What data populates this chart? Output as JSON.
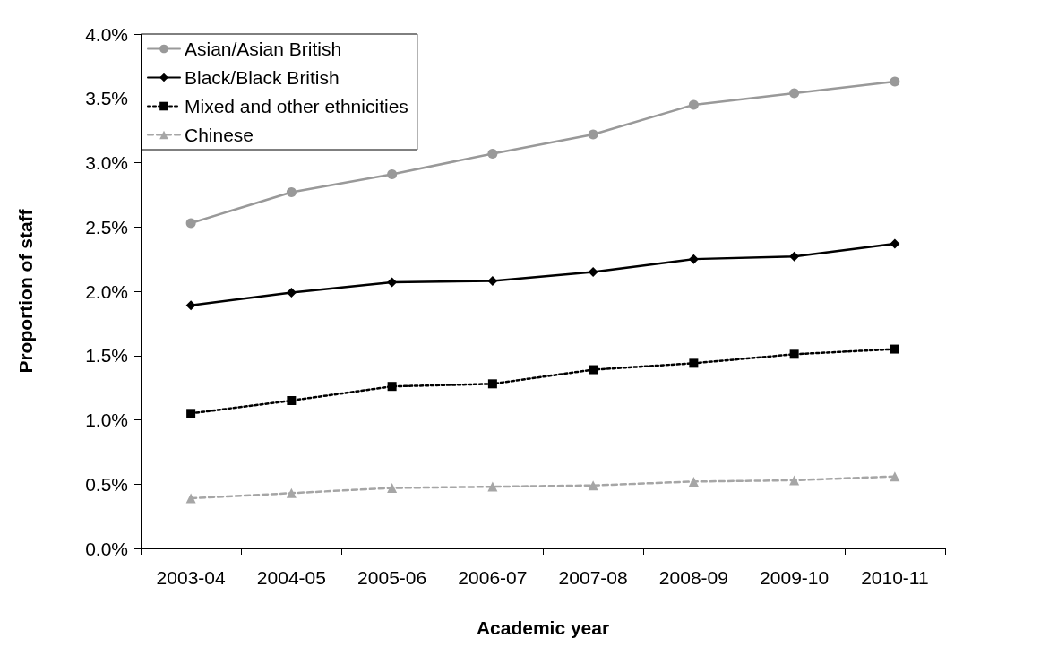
{
  "chart_data": {
    "type": "line",
    "xlabel": "Academic year",
    "ylabel": "Proportion of staff",
    "categories": [
      "2003-04",
      "2004-05",
      "2005-06",
      "2006-07",
      "2007-08",
      "2008-09",
      "2009-10",
      "2010-11"
    ],
    "ylim": [
      0,
      4
    ],
    "yticks": [
      {
        "value": 0,
        "label": "0.0%"
      },
      {
        "value": 0.5,
        "label": "0.5%"
      },
      {
        "value": 1,
        "label": "1.0%"
      },
      {
        "value": 1.5,
        "label": "1.5%"
      },
      {
        "value": 2,
        "label": "2.0%"
      },
      {
        "value": 2.5,
        "label": "2.5%"
      },
      {
        "value": 3,
        "label": "3.0%"
      },
      {
        "value": 3.5,
        "label": "3.5%"
      },
      {
        "value": 4,
        "label": "4.0%"
      }
    ],
    "grid": false,
    "legend": "top left",
    "series": [
      {
        "name": "Asian/Asian British",
        "color": "#999999",
        "marker": "circle",
        "line_style": "solid",
        "values": [
          2.53,
          2.77,
          2.91,
          3.07,
          3.22,
          3.45,
          3.54,
          3.63
        ]
      },
      {
        "name": "Black/Black British",
        "color": "#000000",
        "marker": "diamond",
        "line_style": "solid",
        "values": [
          1.89,
          1.99,
          2.07,
          2.08,
          2.15,
          2.25,
          2.27,
          2.37
        ]
      },
      {
        "name": "Mixed and other ethnicities",
        "color": "#000000",
        "marker": "square",
        "line_style": "dotted",
        "values": [
          1.05,
          1.15,
          1.26,
          1.28,
          1.39,
          1.44,
          1.51,
          1.55
        ]
      },
      {
        "name": "Chinese",
        "color": "#a6a6a6",
        "marker": "triangle",
        "line_style": "dashed",
        "values": [
          0.39,
          0.43,
          0.47,
          0.48,
          0.49,
          0.52,
          0.53,
          0.56
        ]
      }
    ]
  }
}
